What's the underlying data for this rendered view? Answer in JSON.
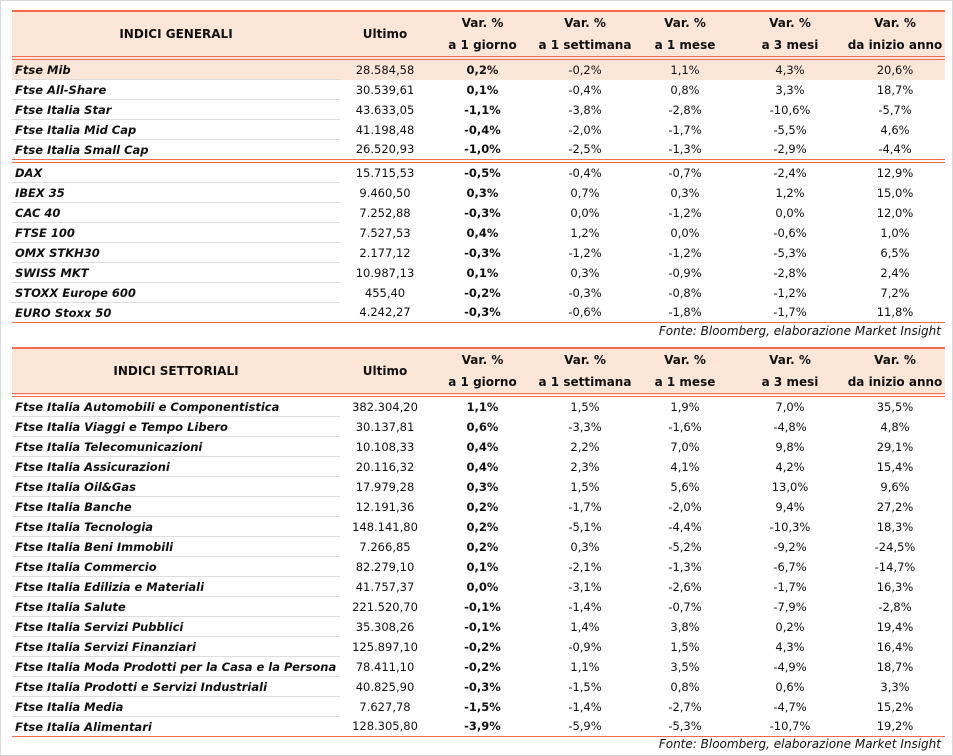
{
  "headers": {
    "ultimo": "Ultimo",
    "var": "Var. %",
    "d1": "a 1 giorno",
    "w1": "a 1 settimana",
    "m1": "a 1 mese",
    "m3": "a 3 mesi",
    "ytd": "da inizio anno"
  },
  "general": {
    "title": "INDICI GENERALI",
    "rows": [
      [
        "Ftse Mib",
        "28.584,58",
        "0,2%",
        "-0,2%",
        "1,1%",
        "4,3%",
        "20,6%"
      ],
      [
        "Ftse All-Share",
        "30.539,61",
        "0,1%",
        "-0,4%",
        "0,8%",
        "3,3%",
        "18,7%"
      ],
      [
        "Ftse Italia Star",
        "43.633,05",
        "-1,1%",
        "-3,8%",
        "-2,8%",
        "-10,6%",
        "-5,7%"
      ],
      [
        "Ftse Italia Mid Cap",
        "41.198,48",
        "-0,4%",
        "-2,0%",
        "-1,7%",
        "-5,5%",
        "4,6%"
      ],
      [
        "Ftse Italia Small Cap",
        "26.520,93",
        "-1,0%",
        "-2,5%",
        "-1,3%",
        "-2,9%",
        "-4,4%"
      ],
      [
        "DAX",
        "15.715,53",
        "-0,5%",
        "-0,4%",
        "-0,7%",
        "-2,4%",
        "12,9%"
      ],
      [
        "IBEX 35",
        "9.460,50",
        "0,3%",
        "0,7%",
        "0,3%",
        "1,2%",
        "15,0%"
      ],
      [
        "CAC 40",
        "7.252,88",
        "-0,3%",
        "0,0%",
        "-1,2%",
        "0,0%",
        "12,0%"
      ],
      [
        "FTSE 100",
        "7.527,53",
        "0,4%",
        "1,2%",
        "0,0%",
        "-0,6%",
        "1,0%"
      ],
      [
        "OMX STKH30",
        "2.177,12",
        "-0,3%",
        "-1,2%",
        "-1,2%",
        "-5,3%",
        "6,5%"
      ],
      [
        "SWISS MKT",
        "10.987,13",
        "0,1%",
        "0,3%",
        "-0,9%",
        "-2,8%",
        "2,4%"
      ],
      [
        "STOXX Europe 600",
        "455,40",
        "-0,2%",
        "-0,3%",
        "-0,8%",
        "-1,2%",
        "7,2%"
      ],
      [
        "EURO Stoxx 50",
        "4.242,27",
        "-0,3%",
        "-0,6%",
        "-1,8%",
        "-1,7%",
        "11,8%"
      ]
    ],
    "source": "Fonte: Bloomberg, elaborazione Market Insight"
  },
  "sector": {
    "title": "INDICI SETTORIALI",
    "rows": [
      [
        "Ftse Italia Automobili e Componentistica",
        "382.304,20",
        "1,1%",
        "1,5%",
        "1,9%",
        "7,0%",
        "35,5%"
      ],
      [
        "Ftse Italia Viaggi e Tempo Libero",
        "30.137,81",
        "0,6%",
        "-3,3%",
        "-1,6%",
        "-4,8%",
        "4,8%"
      ],
      [
        "Ftse Italia Telecomunicazioni",
        "10.108,33",
        "0,4%",
        "2,2%",
        "7,0%",
        "9,8%",
        "29,1%"
      ],
      [
        "Ftse Italia Assicurazioni",
        "20.116,32",
        "0,4%",
        "2,3%",
        "4,1%",
        "4,2%",
        "15,4%"
      ],
      [
        "Ftse Italia Oil&Gas",
        "17.979,28",
        "0,3%",
        "1,5%",
        "5,6%",
        "13,0%",
        "9,6%"
      ],
      [
        "Ftse Italia Banche",
        "12.191,36",
        "0,2%",
        "-1,7%",
        "-2,0%",
        "9,4%",
        "27,2%"
      ],
      [
        "Ftse Italia Tecnologia",
        "148.141,80",
        "0,2%",
        "-5,1%",
        "-4,4%",
        "-10,3%",
        "18,3%"
      ],
      [
        "Ftse Italia Beni Immobili",
        "7.266,85",
        "0,2%",
        "0,3%",
        "-5,2%",
        "-9,2%",
        "-24,5%"
      ],
      [
        "Ftse Italia Commercio",
        "82.279,10",
        "0,1%",
        "-2,1%",
        "-1,3%",
        "-6,7%",
        "-14,7%"
      ],
      [
        "Ftse Italia Edilizia e Materiali",
        "41.757,37",
        "0,0%",
        "-3,1%",
        "-2,6%",
        "-1,7%",
        "16,3%"
      ],
      [
        "Ftse Italia Salute",
        "221.520,70",
        "-0,1%",
        "-1,4%",
        "-0,7%",
        "-7,9%",
        "-2,8%"
      ],
      [
        "Ftse Italia Servizi Pubblici",
        "35.308,26",
        "-0,1%",
        "1,4%",
        "3,8%",
        "0,2%",
        "19,4%"
      ],
      [
        "Ftse Italia Servizi Finanziari",
        "125.897,10",
        "-0,2%",
        "-0,9%",
        "1,5%",
        "4,3%",
        "16,4%"
      ],
      [
        "Ftse Italia Moda Prodotti per la Casa e la Persona",
        "78.411,10",
        "-0,2%",
        "1,1%",
        "3,5%",
        "-4,9%",
        "18,7%"
      ],
      [
        "Ftse Italia Prodotti e Servizi Industriali",
        "40.825,90",
        "-0,3%",
        "-1,5%",
        "0,8%",
        "0,6%",
        "3,3%"
      ],
      [
        "Ftse Italia Media",
        "7.627,78",
        "-1,5%",
        "-1,4%",
        "-2,7%",
        "-4,7%",
        "15,2%"
      ],
      [
        "Ftse Italia Alimentari",
        "128.305,80",
        "-3,9%",
        "-5,9%",
        "-5,3%",
        "-10,7%",
        "19,2%"
      ]
    ],
    "source": "Fonte: Bloomberg, elaborazione Market Insight"
  },
  "colors": {
    "accent": "#f26b50",
    "header_bg": "#fbe6d8"
  }
}
